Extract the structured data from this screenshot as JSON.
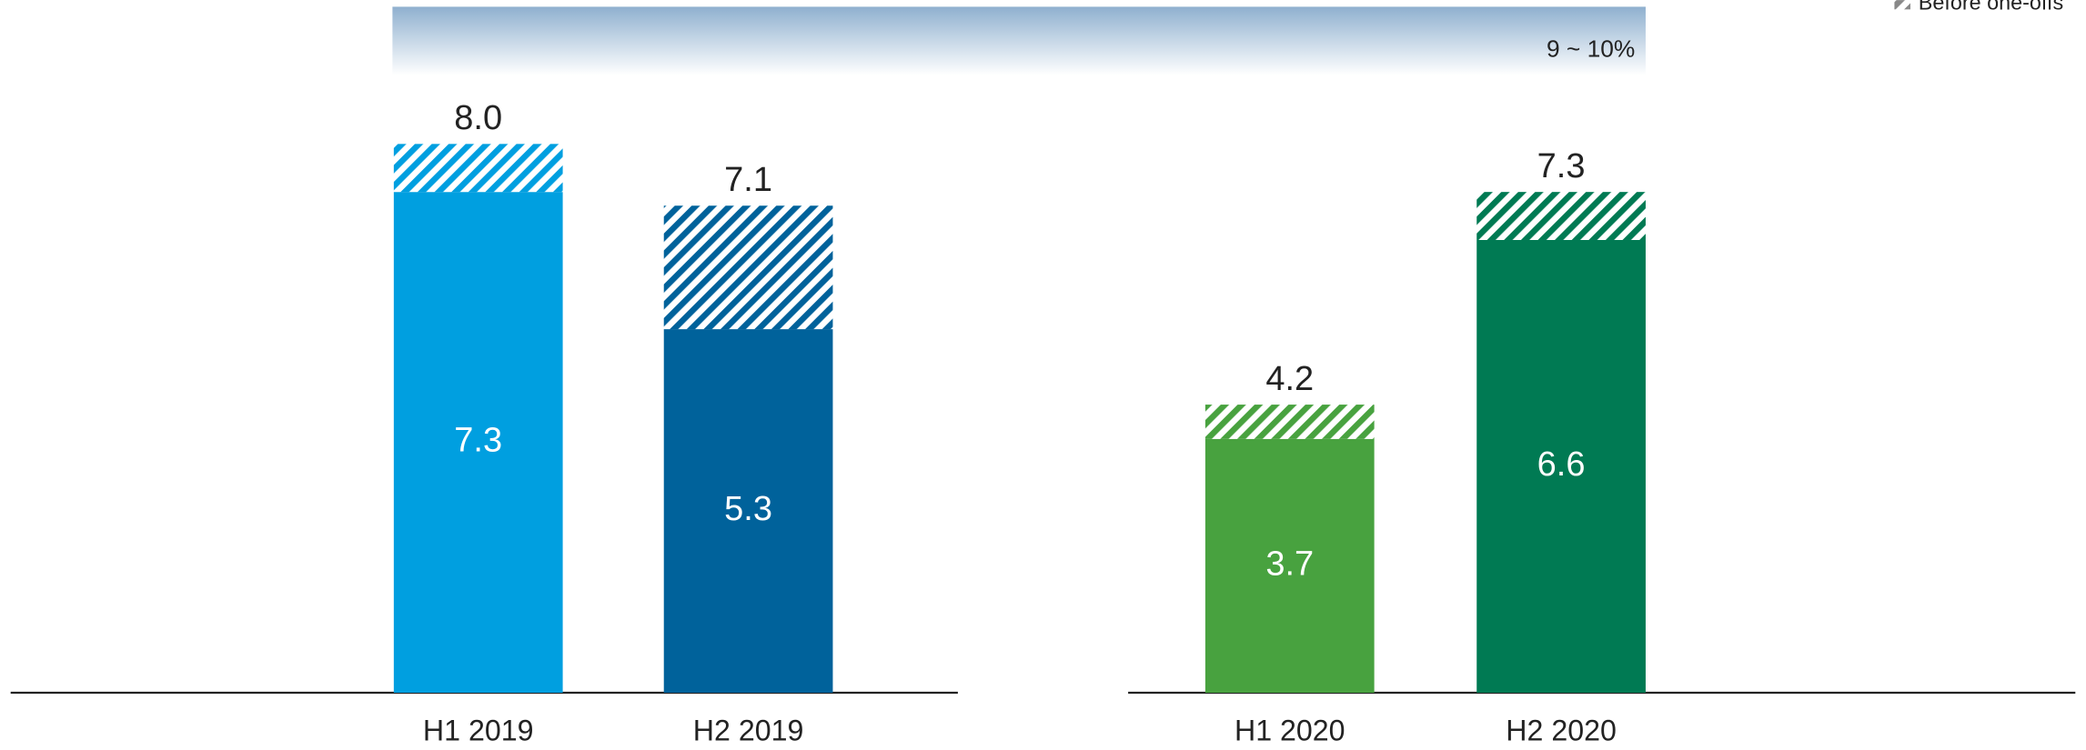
{
  "chart_data": {
    "type": "stacked_bar",
    "categories": [
      "H1 2019",
      "H2 2019",
      "H1 2020",
      "H2 2020"
    ],
    "colors": [
      "#009fe0",
      "#00629b",
      "#48a23f",
      "#007a53"
    ],
    "series": [
      {
        "values": [
          7.3,
          5.3,
          3.7,
          6.6
        ]
      },
      {
        "name": "Before one-offs",
        "hatched": true,
        "values": [
          0.7,
          1.8,
          0.5,
          0.7
        ]
      }
    ],
    "total_labels": [
      "8.0",
      "7.1",
      "4.2",
      "7.3"
    ],
    "target_band": {
      "range": [
        9,
        10
      ],
      "label": "9 ~ 10%"
    },
    "ylim": [
      0,
      10
    ]
  }
}
